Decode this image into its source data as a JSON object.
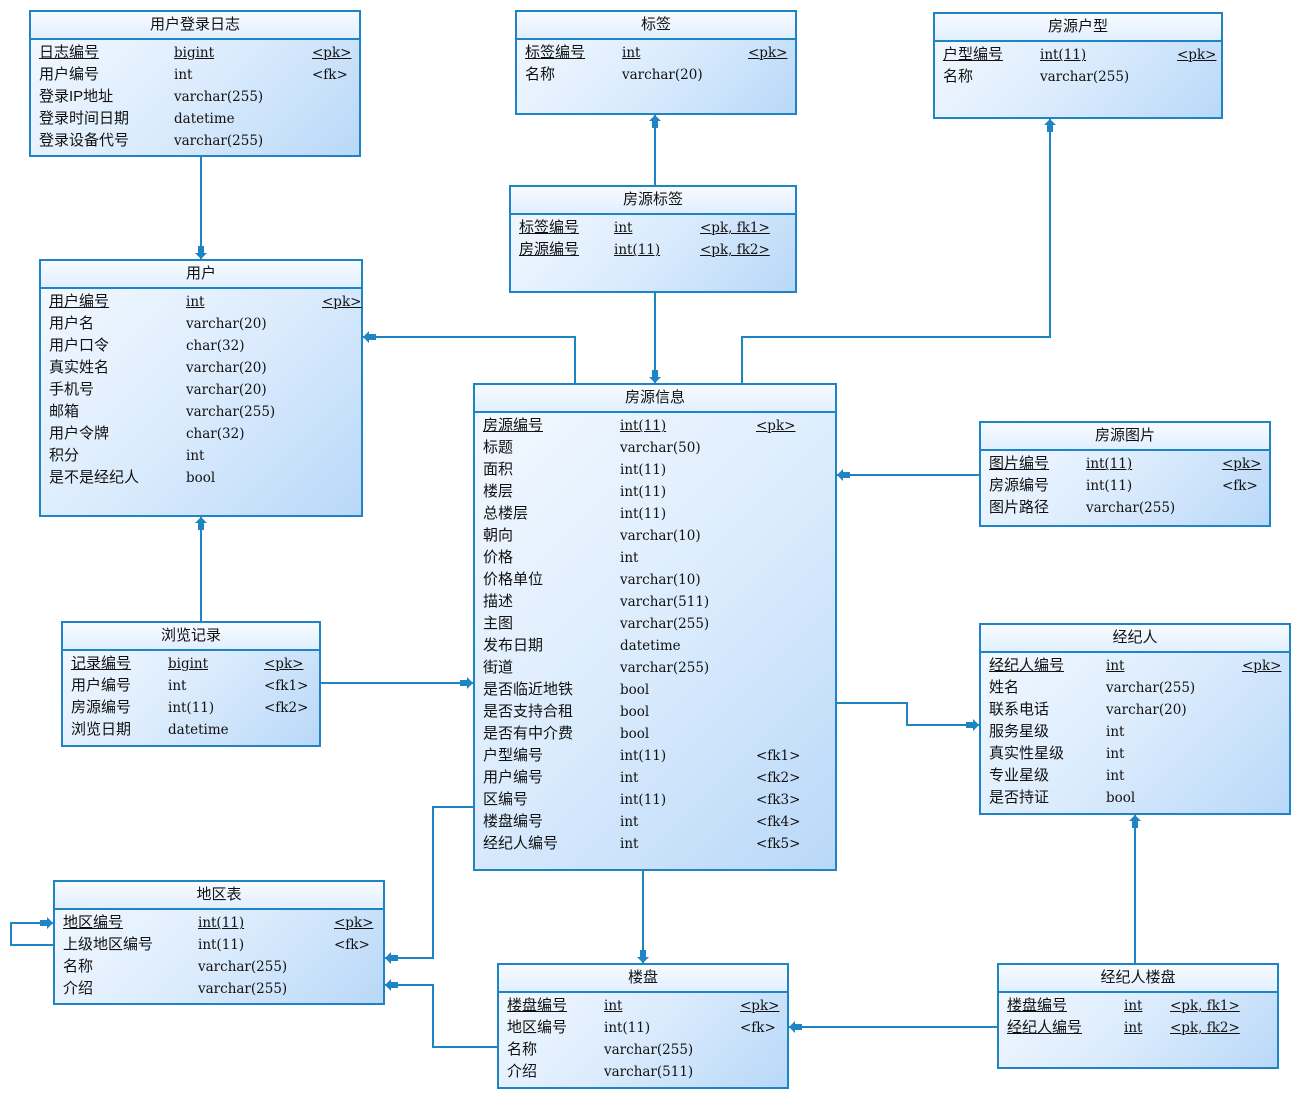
{
  "tables": [
    {
      "name": "用户登录日志",
      "columns": [
        [
          "日志编号",
          "bigint",
          "<pk>"
        ],
        [
          "用户编号",
          "int",
          "<fk>"
        ],
        [
          "登录IP地址",
          "varchar(255)",
          ""
        ],
        [
          "登录时间日期",
          "datetime",
          ""
        ],
        [
          "登录设备代号",
          "varchar(255)",
          ""
        ]
      ],
      "pk_rows": 1
    },
    {
      "name": "标签",
      "columns": [
        [
          "标签编号",
          "int",
          "<pk>"
        ],
        [
          "名称",
          "varchar(20)",
          ""
        ]
      ],
      "pk_rows": 1
    },
    {
      "name": "房源户型",
      "columns": [
        [
          "户型编号",
          "int(11)",
          "<pk>"
        ],
        [
          "名称",
          "varchar(255)",
          ""
        ]
      ],
      "pk_rows": 1
    },
    {
      "name": "房源标签",
      "columns": [
        [
          "标签编号",
          "int",
          "<pk, fk1>"
        ],
        [
          "房源编号",
          "int(11)",
          "<pk, fk2>"
        ]
      ],
      "pk_rows": 2
    },
    {
      "name": "用户",
      "columns": [
        [
          "用户编号",
          "int",
          "<pk>"
        ],
        [
          "用户名",
          "varchar(20)",
          ""
        ],
        [
          "用户口令",
          "char(32)",
          ""
        ],
        [
          "真实姓名",
          "varchar(20)",
          ""
        ],
        [
          "手机号",
          "varchar(20)",
          ""
        ],
        [
          "邮箱",
          "varchar(255)",
          ""
        ],
        [
          "用户令牌",
          "char(32)",
          ""
        ],
        [
          "积分",
          "int",
          ""
        ],
        [
          "是不是经纪人",
          "bool",
          ""
        ]
      ],
      "pk_rows": 1
    },
    {
      "name": "房源信息",
      "columns": [
        [
          "房源编号",
          "int(11)",
          "<pk>"
        ],
        [
          "标题",
          "varchar(50)",
          ""
        ],
        [
          "面积",
          "int(11)",
          ""
        ],
        [
          "楼层",
          "int(11)",
          ""
        ],
        [
          "总楼层",
          "int(11)",
          ""
        ],
        [
          "朝向",
          "varchar(10)",
          ""
        ],
        [
          "价格",
          "int",
          ""
        ],
        [
          "价格单位",
          "varchar(10)",
          ""
        ],
        [
          "描述",
          "varchar(511)",
          ""
        ],
        [
          "主图",
          "varchar(255)",
          ""
        ],
        [
          "发布日期",
          "datetime",
          ""
        ],
        [
          "街道",
          "varchar(255)",
          ""
        ],
        [
          "是否临近地铁",
          "bool",
          ""
        ],
        [
          "是否支持合租",
          "bool",
          ""
        ],
        [
          "是否有中介费",
          "bool",
          ""
        ],
        [
          "户型编号",
          "int(11)",
          "<fk1>"
        ],
        [
          "用户编号",
          "int",
          "<fk2>"
        ],
        [
          "区编号",
          "int(11)",
          "<fk3>"
        ],
        [
          "楼盘编号",
          "int",
          "<fk4>"
        ],
        [
          "经纪人编号",
          "int",
          "<fk5>"
        ]
      ],
      "pk_rows": 1
    },
    {
      "name": "房源图片",
      "columns": [
        [
          "图片编号",
          "int(11)",
          "<pk>"
        ],
        [
          "房源编号",
          "int(11)",
          "<fk>"
        ],
        [
          "图片路径",
          "varchar(255)",
          ""
        ]
      ],
      "pk_rows": 1
    },
    {
      "name": "浏览记录",
      "columns": [
        [
          "记录编号",
          "bigint",
          "<pk>"
        ],
        [
          "用户编号",
          "int",
          "<fk1>"
        ],
        [
          "房源编号",
          "int(11)",
          "<fk2>"
        ],
        [
          "浏览日期",
          "datetime",
          ""
        ]
      ],
      "pk_rows": 1
    },
    {
      "name": "经纪人",
      "columns": [
        [
          "经纪人编号",
          "int",
          "<pk>"
        ],
        [
          "姓名",
          "varchar(255)",
          ""
        ],
        [
          "联系电话",
          "varchar(20)",
          ""
        ],
        [
          "服务星级",
          "int",
          ""
        ],
        [
          "真实性星级",
          "int",
          ""
        ],
        [
          "专业星级",
          "int",
          ""
        ],
        [
          "是否持证",
          "bool",
          ""
        ]
      ],
      "pk_rows": 1
    },
    {
      "name": "地区表",
      "columns": [
        [
          "地区编号",
          "int(11)",
          "<pk>"
        ],
        [
          "上级地区编号",
          "int(11)",
          "<fk>"
        ],
        [
          "名称",
          "varchar(255)",
          ""
        ],
        [
          "介绍",
          "varchar(255)",
          ""
        ]
      ],
      "pk_rows": 1
    },
    {
      "name": "楼盘",
      "columns": [
        [
          "楼盘编号",
          "int",
          "<pk>"
        ],
        [
          "地区编号",
          "int(11)",
          "<fk>"
        ],
        [
          "名称",
          "varchar(255)",
          ""
        ],
        [
          "介绍",
          "varchar(511)",
          ""
        ]
      ],
      "pk_rows": 1
    },
    {
      "name": "经纪人楼盘",
      "columns": [
        [
          "楼盘编号",
          "int",
          "<pk, fk1>"
        ],
        [
          "经纪人编号",
          "int",
          "<pk, fk2>"
        ]
      ],
      "pk_rows": 2
    }
  ],
  "relationships": [
    {
      "from": "用户登录日志",
      "to": "用户"
    },
    {
      "from": "房源标签",
      "to": "标签"
    },
    {
      "from": "房源标签",
      "to": "房源信息"
    },
    {
      "from": "房源信息",
      "to": "用户"
    },
    {
      "from": "房源信息",
      "to": "房源户型"
    },
    {
      "from": "房源图片",
      "to": "房源信息"
    },
    {
      "from": "浏览记录",
      "to": "用户"
    },
    {
      "from": "浏览记录",
      "to": "房源信息"
    },
    {
      "from": "房源信息",
      "to": "经纪人"
    },
    {
      "from": "房源信息",
      "to": "地区表"
    },
    {
      "from": "楼盘",
      "to": "地区表"
    },
    {
      "from": "房源信息",
      "to": "楼盘"
    },
    {
      "from": "经纪人楼盘",
      "to": "楼盘"
    },
    {
      "from": "经纪人楼盘",
      "to": "经纪人"
    },
    {
      "from": "地区表",
      "to": "地区表"
    }
  ],
  "colors": {
    "line": "#1f84c4",
    "border": "#1f84c4"
  }
}
